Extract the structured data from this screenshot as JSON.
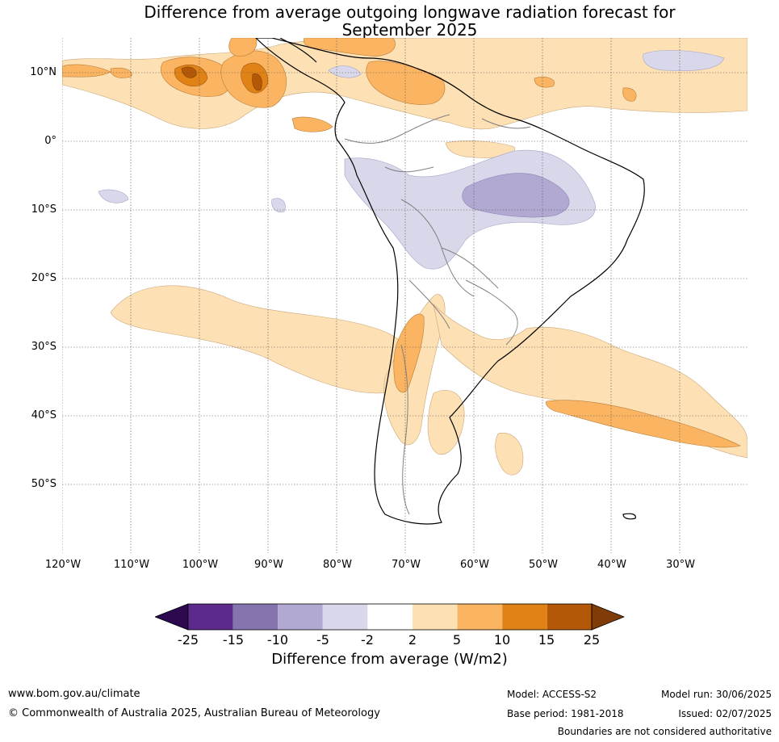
{
  "title_line1": "Difference from average outgoing longwave radiation forecast for",
  "title_line2": "September 2025",
  "lat_labels": [
    "10°N",
    "0°",
    "10°S",
    "20°S",
    "30°S",
    "40°S",
    "50°S"
  ],
  "lon_labels": [
    "120°W",
    "110°W",
    "100°W",
    "90°W",
    "80°W",
    "70°W",
    "60°W",
    "50°W",
    "40°W",
    "30°W"
  ],
  "legend": {
    "title": "Difference from average (W/m2)",
    "ticks": [
      "-25",
      "-15",
      "-10",
      "-5",
      "-2",
      "2",
      "5",
      "10",
      "15",
      "25"
    ],
    "colors": [
      "#2d0a4f",
      "#5c2a8c",
      "#8574ad",
      "#b1a9d2",
      "#d8d8ea",
      "#ffffff",
      "#fde0b4",
      "#fbb562",
      "#e08216",
      "#b35806",
      "#7f3b08"
    ]
  },
  "footer": {
    "website": "www.bom.gov.au/climate",
    "copyright": "© Commonwealth of Australia 2025, Australian Bureau of Meteorology",
    "model": "Model: ACCESS-S2",
    "model_run": "Model run: 30/06/2025",
    "base_period": "Base period: 1981-2018",
    "issued": "Issued: 02/07/2025",
    "disclaimer": "Boundaries are not considered authoritative"
  }
}
